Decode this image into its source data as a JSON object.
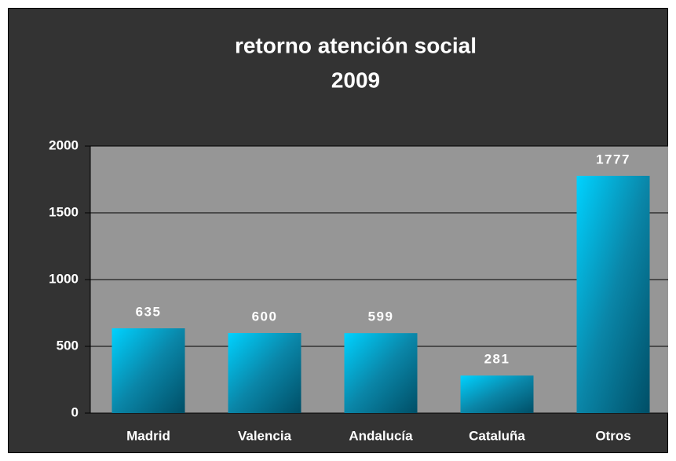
{
  "chart_data": {
    "type": "bar",
    "title": [
      "retorno atención social",
      "2009"
    ],
    "categories": [
      "Madrid",
      "Valencia",
      "Andalucía",
      "Cataluña",
      "Otros"
    ],
    "values": [
      635,
      600,
      599,
      281,
      1777
    ],
    "color": "#00c8f8",
    "ylim": [
      0,
      2000
    ],
    "yticks": [
      0,
      500,
      1000,
      1500,
      2000
    ],
    "grid": true
  }
}
